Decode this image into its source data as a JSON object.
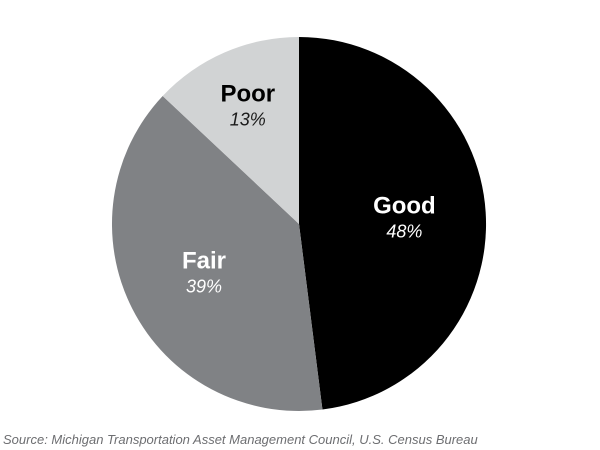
{
  "page": {
    "background": "#ffffff"
  },
  "chart_data": {
    "type": "pie",
    "title": "",
    "direction": "clockwise",
    "start_angle_deg": 0,
    "legend": "none",
    "labels_inside": true,
    "total": 100,
    "slices": [
      {
        "label": "Good",
        "value": 48,
        "value_text": "48%",
        "color": "#000000",
        "label_color": "#ffffff",
        "value_color": "#ffffff"
      },
      {
        "label": "Fair",
        "value": 39,
        "value_text": "39%",
        "color": "#808285",
        "label_color": "#ffffff",
        "value_color": "#ffffff"
      },
      {
        "label": "Poor",
        "value": 13,
        "value_text": "13%",
        "color": "#d1d3d4",
        "label_color": "#000000",
        "value_color": "#1a1a1a"
      }
    ]
  },
  "source": {
    "text": "Source: Michigan Transportation Asset Management Council, U.S. Census Bureau",
    "color": "#6d6e71"
  }
}
